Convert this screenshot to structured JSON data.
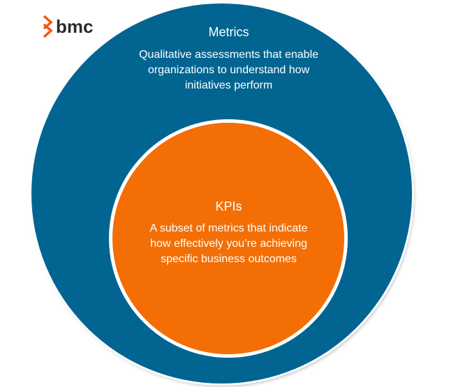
{
  "logo": {
    "text": "bmc",
    "icon": "bmc-chevron-logo-icon",
    "icon_color": "#fe5000"
  },
  "diagram": {
    "outer": {
      "title": "Metrics",
      "description": "Qualitative assessments that enable organizations to understand how initiatives perform",
      "color": "#026591"
    },
    "inner": {
      "title": "KPIs",
      "description": "A subset of metrics that indicate how effectively you’re achieving specific business outcomes",
      "color": "#f36f06"
    }
  }
}
